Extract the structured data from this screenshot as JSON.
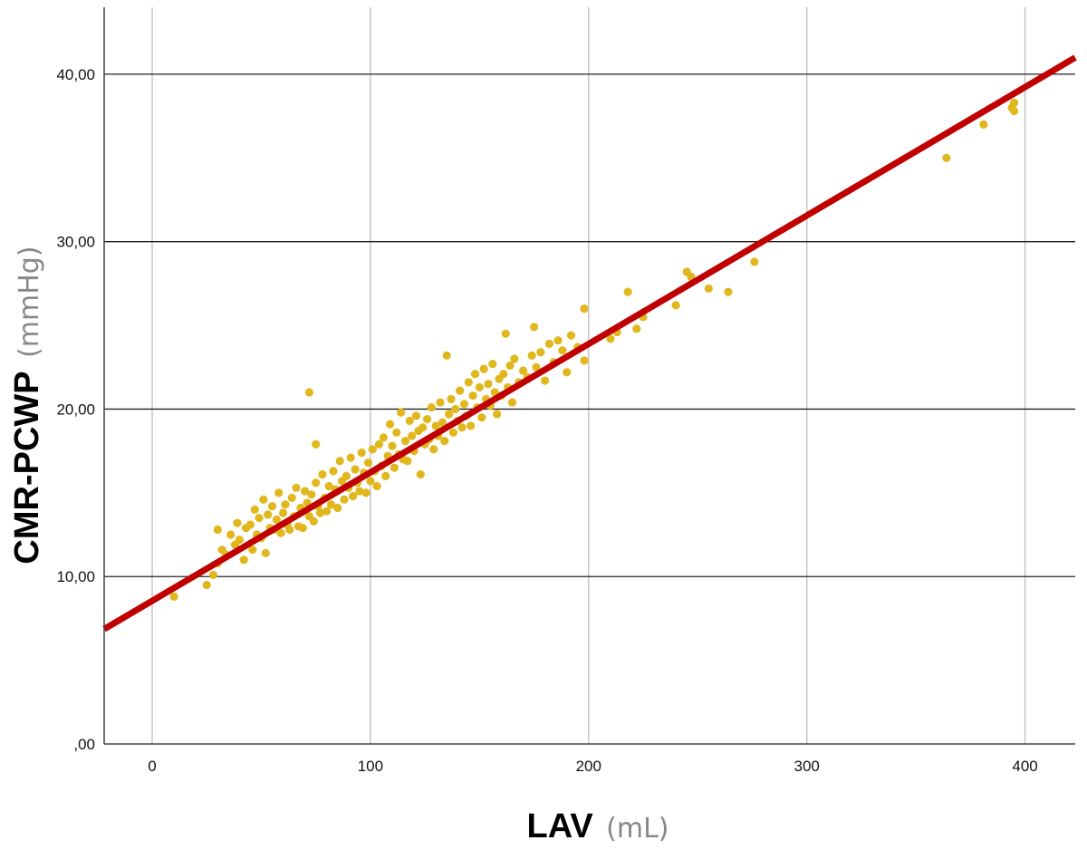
{
  "chart_data": {
    "type": "scatter",
    "title": "",
    "xlabel": "LAV",
    "xlabel_unit": "(mL)",
    "ylabel": "CMR-PCWP",
    "ylabel_unit": "(mmHg)",
    "xlim": [
      -22,
      423
    ],
    "ylim": [
      0,
      44
    ],
    "x_ticks": [
      0,
      100,
      200,
      300,
      400
    ],
    "x_tick_labels": [
      "0",
      "100",
      "200",
      "300",
      "400"
    ],
    "y_ticks": [
      0,
      10,
      20,
      30,
      40
    ],
    "y_tick_labels": [
      ",00",
      "10,00",
      "20,00",
      "30,00",
      "40,00"
    ],
    "grid": {
      "x": true,
      "y": true
    },
    "colors": {
      "points": "#E0B81E",
      "fit_line": "#C00000",
      "y_grid": "#222222",
      "x_grid": "#BDBDBD",
      "frame": "#444444"
    },
    "fit_line": {
      "type": "linear",
      "intercept": 8.55,
      "slope": 0.0767
    },
    "points": [
      [
        10,
        8.8
      ],
      [
        25,
        9.5
      ],
      [
        28,
        10.1
      ],
      [
        30,
        10.8
      ],
      [
        30,
        12.8
      ],
      [
        32,
        11.6
      ],
      [
        34,
        11.3
      ],
      [
        36,
        12.5
      ],
      [
        38,
        11.9
      ],
      [
        39,
        13.2
      ],
      [
        40,
        12.2
      ],
      [
        42,
        11.0
      ],
      [
        43,
        12.9
      ],
      [
        45,
        13.1
      ],
      [
        46,
        11.6
      ],
      [
        47,
        14.0
      ],
      [
        48,
        12.5
      ],
      [
        49,
        13.5
      ],
      [
        50,
        12.3
      ],
      [
        51,
        14.6
      ],
      [
        52,
        11.4
      ],
      [
        53,
        13.7
      ],
      [
        54,
        12.9
      ],
      [
        55,
        14.2
      ],
      [
        56,
        12.8
      ],
      [
        57,
        13.4
      ],
      [
        58,
        15.0
      ],
      [
        59,
        12.6
      ],
      [
        60,
        13.8
      ],
      [
        61,
        14.3
      ],
      [
        62,
        13.1
      ],
      [
        63,
        12.8
      ],
      [
        64,
        14.7
      ],
      [
        65,
        13.6
      ],
      [
        66,
        15.3
      ],
      [
        67,
        13.0
      ],
      [
        68,
        14.1
      ],
      [
        69,
        12.9
      ],
      [
        70,
        15.1
      ],
      [
        71,
        14.4
      ],
      [
        72,
        13.6
      ],
      [
        72,
        21.0
      ],
      [
        73,
        14.9
      ],
      [
        74,
        13.3
      ],
      [
        75,
        17.9
      ],
      [
        75,
        15.6
      ],
      [
        76,
        14.2
      ],
      [
        77,
        13.8
      ],
      [
        78,
        16.1
      ],
      [
        79,
        14.7
      ],
      [
        80,
        13.9
      ],
      [
        81,
        15.4
      ],
      [
        82,
        14.3
      ],
      [
        83,
        16.3
      ],
      [
        84,
        15.2
      ],
      [
        85,
        14.1
      ],
      [
        86,
        16.9
      ],
      [
        87,
        15.7
      ],
      [
        88,
        14.6
      ],
      [
        89,
        16.0
      ],
      [
        90,
        15.3
      ],
      [
        91,
        17.1
      ],
      [
        92,
        14.8
      ],
      [
        93,
        16.4
      ],
      [
        94,
        15.6
      ],
      [
        95,
        15.1
      ],
      [
        96,
        17.4
      ],
      [
        97,
        16.2
      ],
      [
        98,
        15.0
      ],
      [
        99,
        16.8
      ],
      [
        100,
        15.7
      ],
      [
        101,
        17.6
      ],
      [
        102,
        16.3
      ],
      [
        103,
        15.4
      ],
      [
        104,
        17.9
      ],
      [
        105,
        16.6
      ],
      [
        106,
        18.3
      ],
      [
        107,
        16.0
      ],
      [
        108,
        17.2
      ],
      [
        109,
        19.1
      ],
      [
        110,
        17.8
      ],
      [
        111,
        16.5
      ],
      [
        112,
        18.6
      ],
      [
        113,
        17.3
      ],
      [
        114,
        19.8
      ],
      [
        115,
        17.0
      ],
      [
        116,
        18.1
      ],
      [
        117,
        16.9
      ],
      [
        118,
        19.3
      ],
      [
        119,
        18.4
      ],
      [
        120,
        17.5
      ],
      [
        121,
        19.6
      ],
      [
        122,
        18.7
      ],
      [
        123,
        16.1
      ],
      [
        124,
        18.9
      ],
      [
        125,
        17.9
      ],
      [
        126,
        19.4
      ],
      [
        127,
        18.2
      ],
      [
        128,
        20.1
      ],
      [
        129,
        17.6
      ],
      [
        130,
        19.0
      ],
      [
        131,
        18.4
      ],
      [
        132,
        20.4
      ],
      [
        133,
        19.2
      ],
      [
        134,
        18.1
      ],
      [
        135,
        23.2
      ],
      [
        136,
        19.7
      ],
      [
        137,
        20.6
      ],
      [
        138,
        18.6
      ],
      [
        139,
        20.0
      ],
      [
        140,
        19.3
      ],
      [
        141,
        21.1
      ],
      [
        142,
        18.9
      ],
      [
        143,
        20.3
      ],
      [
        144,
        19.6
      ],
      [
        145,
        21.6
      ],
      [
        146,
        19.0
      ],
      [
        147,
        20.8
      ],
      [
        148,
        22.1
      ],
      [
        149,
        20.1
      ],
      [
        150,
        21.3
      ],
      [
        151,
        19.5
      ],
      [
        152,
        22.4
      ],
      [
        153,
        20.6
      ],
      [
        154,
        21.5
      ],
      [
        155,
        20.2
      ],
      [
        156,
        22.7
      ],
      [
        157,
        21.0
      ],
      [
        158,
        19.7
      ],
      [
        159,
        21.8
      ],
      [
        160,
        20.8
      ],
      [
        161,
        22.1
      ],
      [
        162,
        24.5
      ],
      [
        163,
        21.3
      ],
      [
        164,
        22.6
      ],
      [
        165,
        20.4
      ],
      [
        166,
        23.0
      ],
      [
        168,
        21.6
      ],
      [
        170,
        22.3
      ],
      [
        172,
        21.9
      ],
      [
        174,
        23.2
      ],
      [
        175,
        24.9
      ],
      [
        176,
        22.5
      ],
      [
        178,
        23.4
      ],
      [
        180,
        21.7
      ],
      [
        182,
        23.9
      ],
      [
        184,
        22.8
      ],
      [
        186,
        24.1
      ],
      [
        188,
        23.5
      ],
      [
        190,
        22.2
      ],
      [
        192,
        24.4
      ],
      [
        195,
        23.7
      ],
      [
        198,
        26.0
      ],
      [
        198,
        22.9
      ],
      [
        210,
        24.2
      ],
      [
        213,
        24.6
      ],
      [
        218,
        27.0
      ],
      [
        222,
        24.8
      ],
      [
        225,
        25.5
      ],
      [
        240,
        26.2
      ],
      [
        245,
        28.2
      ],
      [
        247,
        27.9
      ],
      [
        255,
        27.2
      ],
      [
        264,
        27.0
      ],
      [
        276,
        28.8
      ],
      [
        364,
        35.0
      ],
      [
        381,
        37.0
      ],
      [
        394,
        38.0
      ],
      [
        395,
        38.3
      ],
      [
        395,
        37.8
      ]
    ]
  }
}
